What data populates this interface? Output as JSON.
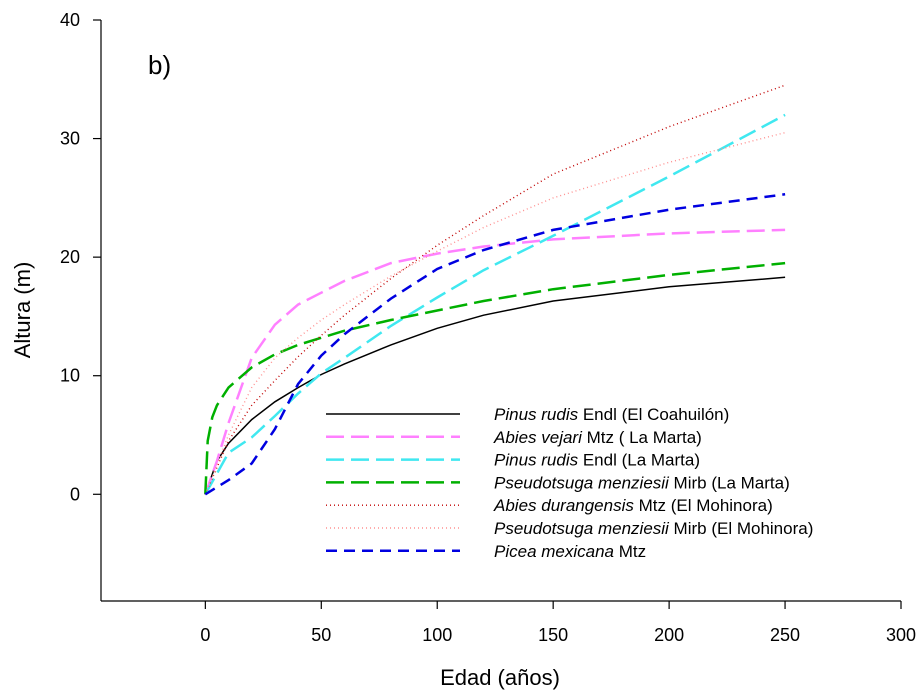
{
  "chart_data": {
    "type": "line",
    "panel_label": "b)",
    "xlabel": "Edad (años)",
    "ylabel": "Altura (m)",
    "xlim": [
      -45,
      300
    ],
    "ylim": [
      -9,
      40
    ],
    "xticks": [
      0,
      50,
      100,
      150,
      200,
      250,
      300
    ],
    "yticks": [
      0,
      10,
      20,
      30,
      40
    ],
    "grid": false,
    "legend_position": "lower-right",
    "series": [
      {
        "name_italic": "Pinus rudis",
        "name_rest": " Endl (El Coahuilón)",
        "color": "#000000",
        "dash": "solid",
        "x": [
          0,
          5,
          10,
          20,
          30,
          40,
          50,
          60,
          80,
          100,
          120,
          150,
          200,
          250
        ],
        "y": [
          0,
          2.8,
          4.3,
          6.3,
          7.8,
          9.0,
          10.1,
          11.0,
          12.6,
          14.0,
          15.1,
          16.3,
          17.5,
          18.3
        ]
      },
      {
        "name_italic": "Abies vejari",
        "name_rest": " Mtz ( La Marta)",
        "color": "#ff80ff",
        "dash": "long-dash",
        "x": [
          0,
          5,
          10,
          20,
          30,
          40,
          50,
          60,
          80,
          100,
          120,
          150,
          200,
          250
        ],
        "y": [
          0,
          2.8,
          6.0,
          11.5,
          14.3,
          16.0,
          17.0,
          18.0,
          19.5,
          20.3,
          20.9,
          21.5,
          22.0,
          22.3
        ]
      },
      {
        "name_italic": "Pinus rudis",
        "name_rest": " Endl (La Marta)",
        "color": "#40e8f0",
        "dash": "long-dash",
        "x": [
          0,
          10,
          20,
          30,
          40,
          50,
          60,
          80,
          100,
          120,
          150,
          200,
          250
        ],
        "y": [
          0,
          3.5,
          4.8,
          6.6,
          8.5,
          10.2,
          11.5,
          14.2,
          16.6,
          18.9,
          21.8,
          26.8,
          32.0
        ]
      },
      {
        "name_italic": "Pseudotsuga menziesii",
        "name_rest": " Mirb (La Marta)",
        "color": "#00b000",
        "dash": "long-dash",
        "x": [
          0,
          1,
          3,
          5,
          10,
          20,
          30,
          40,
          50,
          60,
          80,
          100,
          120,
          150,
          200,
          250
        ],
        "y": [
          0,
          4.5,
          6.5,
          7.5,
          9.0,
          10.7,
          11.8,
          12.6,
          13.2,
          13.8,
          14.7,
          15.5,
          16.3,
          17.3,
          18.5,
          19.5
        ]
      },
      {
        "name_italic": "Abies durangensis",
        "name_rest": " Mtz (El Mohinora)",
        "color": "#c00000",
        "dash": "dotted",
        "x": [
          0,
          10,
          20,
          30,
          40,
          50,
          60,
          80,
          100,
          120,
          150,
          200,
          250
        ],
        "y": [
          0,
          4.5,
          7.5,
          9.6,
          11.6,
          13.4,
          15.1,
          18.2,
          21.0,
          23.5,
          27.0,
          31.0,
          34.5
        ]
      },
      {
        "name_italic": "Pseudotsuga menziesii",
        "name_rest": " Mirb (El Mohinora)",
        "color": "#ff9090",
        "dash": "dotted",
        "x": [
          0,
          10,
          20,
          30,
          40,
          50,
          60,
          80,
          100,
          120,
          150,
          200,
          250
        ],
        "y": [
          0,
          5.0,
          9.0,
          11.5,
          13.2,
          14.7,
          16.0,
          18.4,
          20.5,
          22.5,
          25.0,
          28.0,
          30.5
        ]
      },
      {
        "name_italic": "Picea mexicana",
        "name_rest": " Mtz",
        "color": "#0000e0",
        "dash": "short-dash",
        "x": [
          0,
          10,
          20,
          30,
          40,
          50,
          60,
          80,
          100,
          120,
          150,
          200,
          250
        ],
        "y": [
          0,
          1.2,
          2.6,
          5.5,
          9.3,
          11.7,
          13.5,
          16.5,
          19.0,
          20.6,
          22.3,
          24.0,
          25.3
        ]
      }
    ]
  }
}
